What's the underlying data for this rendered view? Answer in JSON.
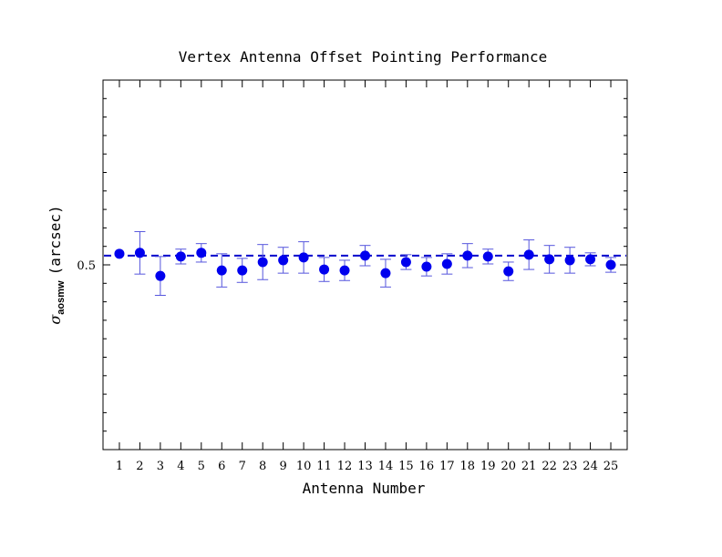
{
  "chart_data": {
    "type": "scatter",
    "title": "Vertex Antenna Offset Pointing Performance",
    "xlabel": "Antenna Number",
    "ylabel_symbol": "σ",
    "ylabel_subscript": "aosmw",
    "ylabel_unit": "(arcsec)",
    "xlim": [
      0.2,
      25.8
    ],
    "ylim": [
      0.3,
      0.7
    ],
    "x_tick_labels": [
      "1",
      "2",
      "3",
      "4",
      "5",
      "6",
      "7",
      "8",
      "9",
      "10",
      "11",
      "12",
      "13",
      "14",
      "15",
      "16",
      "17",
      "18",
      "19",
      "20",
      "21",
      "22",
      "23",
      "24",
      "25"
    ],
    "y_tick_labels": [
      {
        "value": 0.5,
        "label": "0.5"
      }
    ],
    "y_minor_ticks": [
      0.32,
      0.34,
      0.36,
      0.38,
      0.4,
      0.42,
      0.44,
      0.46,
      0.48,
      0.52,
      0.54,
      0.56,
      0.58,
      0.6,
      0.62,
      0.64,
      0.66,
      0.68
    ],
    "reference_line": 0.51,
    "grid": false,
    "marker_color": "#0000ee",
    "error_bar_color": "#5555dd",
    "reference_line_color": "#0000cc",
    "points": [
      {
        "x": 1,
        "y": 0.512,
        "lo": null,
        "hi": null
      },
      {
        "x": 2,
        "y": 0.513,
        "lo": 0.49,
        "hi": 0.536
      },
      {
        "x": 3,
        "y": 0.488,
        "lo": 0.467,
        "hi": 0.509
      },
      {
        "x": 4,
        "y": 0.509,
        "lo": 0.501,
        "hi": 0.517
      },
      {
        "x": 5,
        "y": 0.513,
        "lo": 0.503,
        "hi": 0.523
      },
      {
        "x": 6,
        "y": 0.494,
        "lo": 0.476,
        "hi": 0.512
      },
      {
        "x": 7,
        "y": 0.494,
        "lo": 0.481,
        "hi": 0.507
      },
      {
        "x": 8,
        "y": 0.503,
        "lo": 0.484,
        "hi": 0.522
      },
      {
        "x": 9,
        "y": 0.505,
        "lo": 0.491,
        "hi": 0.519
      },
      {
        "x": 10,
        "y": 0.508,
        "lo": 0.491,
        "hi": 0.525
      },
      {
        "x": 11,
        "y": 0.495,
        "lo": 0.482,
        "hi": 0.508
      },
      {
        "x": 12,
        "y": 0.494,
        "lo": 0.483,
        "hi": 0.505
      },
      {
        "x": 13,
        "y": 0.51,
        "lo": 0.499,
        "hi": 0.521
      },
      {
        "x": 14,
        "y": 0.491,
        "lo": 0.476,
        "hi": 0.506
      },
      {
        "x": 15,
        "y": 0.503,
        "lo": 0.495,
        "hi": 0.511
      },
      {
        "x": 16,
        "y": 0.498,
        "lo": 0.488,
        "hi": 0.508
      },
      {
        "x": 17,
        "y": 0.501,
        "lo": 0.49,
        "hi": 0.512
      },
      {
        "x": 18,
        "y": 0.51,
        "lo": 0.497,
        "hi": 0.523
      },
      {
        "x": 19,
        "y": 0.509,
        "lo": 0.501,
        "hi": 0.517
      },
      {
        "x": 20,
        "y": 0.493,
        "lo": 0.483,
        "hi": 0.503
      },
      {
        "x": 21,
        "y": 0.511,
        "lo": 0.495,
        "hi": 0.527
      },
      {
        "x": 22,
        "y": 0.506,
        "lo": 0.491,
        "hi": 0.521
      },
      {
        "x": 23,
        "y": 0.505,
        "lo": 0.491,
        "hi": 0.519
      },
      {
        "x": 24,
        "y": 0.506,
        "lo": 0.499,
        "hi": 0.513
      },
      {
        "x": 25,
        "y": 0.5,
        "lo": 0.492,
        "hi": 0.508
      }
    ]
  }
}
